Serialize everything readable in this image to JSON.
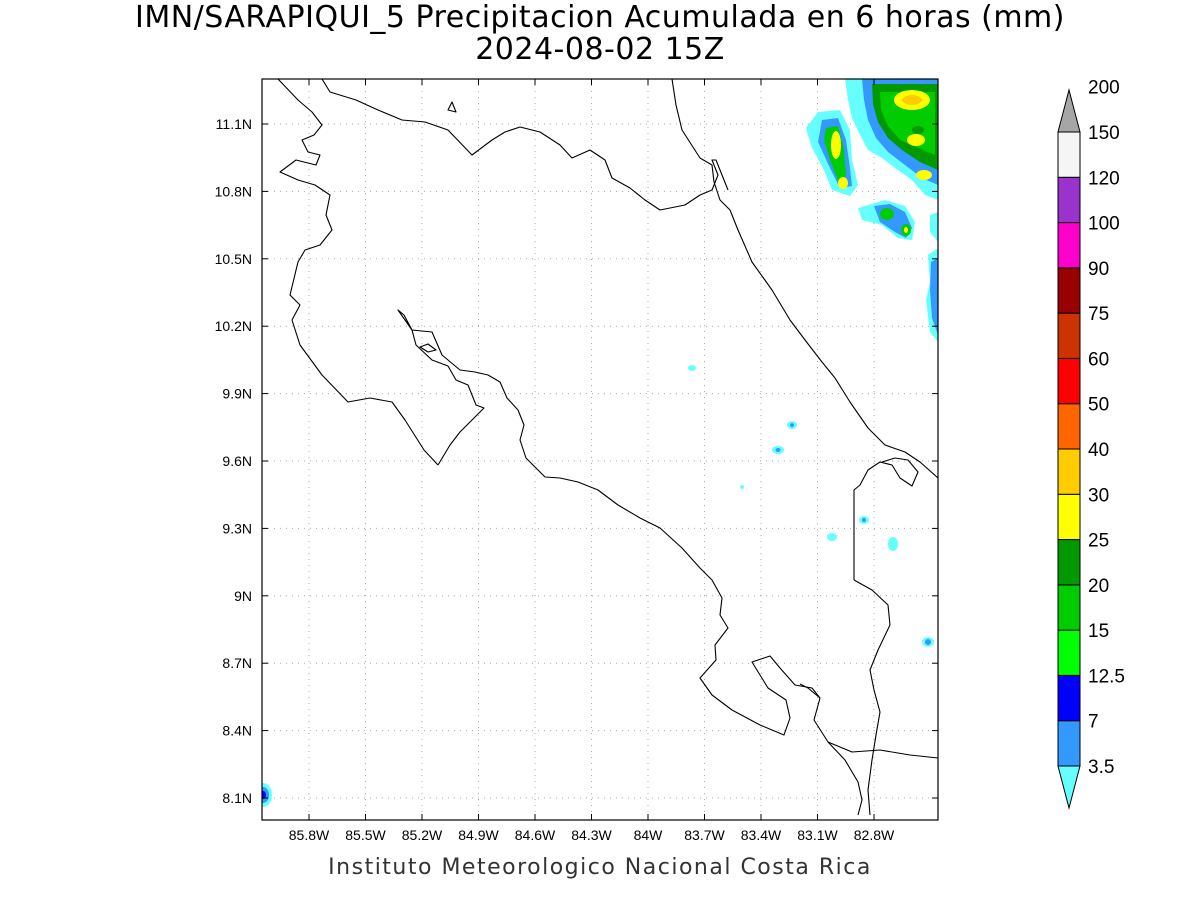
{
  "title": "IMN/SARAPIQUI_5 Precipitacion Acumulada en 6 horas (mm)",
  "subtitle": "2024-08-02 15Z",
  "footer": "Instituto Meteorologico Nacional Costa Rica",
  "map": {
    "region": "Costa Rica",
    "lon_range": [
      -86.0,
      -82.6
    ],
    "lat_range": [
      8.0,
      11.3
    ],
    "grid": true,
    "x_ticks": [
      "85.8W",
      "85.5W",
      "85.2W",
      "84.9W",
      "84.6W",
      "84.3W",
      "84W",
      "83.7W",
      "83.4W",
      "83.1W",
      "82.8W"
    ],
    "y_ticks": [
      "11.1N",
      "10.8N",
      "10.5N",
      "10.2N",
      "9.9N",
      "9.6N",
      "9.3N",
      "9N",
      "8.7N",
      "8.4N",
      "8.1N"
    ]
  },
  "colorbar": {
    "labels": [
      "3.5",
      "7",
      "12.5",
      "15",
      "20",
      "25",
      "30",
      "40",
      "50",
      "60",
      "75",
      "90",
      "100",
      "120",
      "150",
      "200"
    ],
    "colors": [
      "#66ffff",
      "#3399ff",
      "#0000ff",
      "#00ff00",
      "#00cc00",
      "#009900",
      "#ffff00",
      "#ffcc00",
      "#ff6600",
      "#ff0000",
      "#cc3300",
      "#990000",
      "#ff00cc",
      "#9933cc",
      "#f5f5f5",
      "#a6a6a6"
    ]
  }
}
